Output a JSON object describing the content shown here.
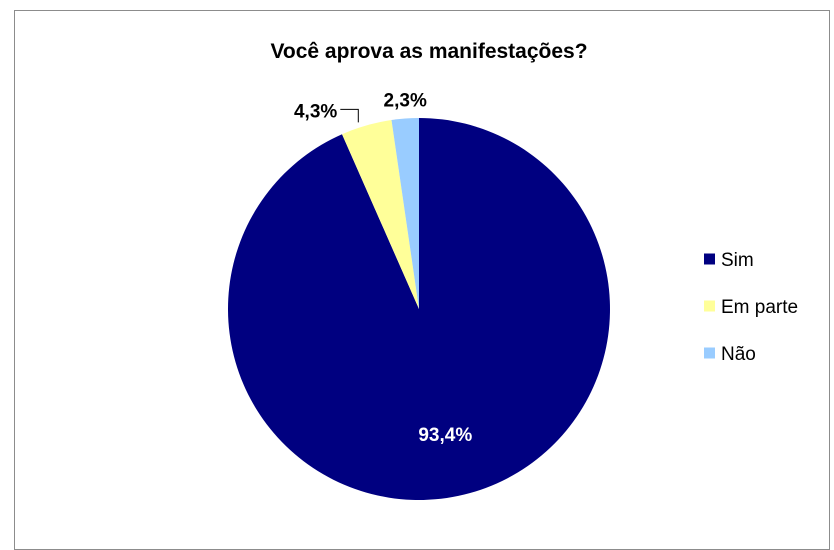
{
  "chart_data": {
    "type": "pie",
    "title": "Você aprova as manifestações?",
    "start_angle_deg": 0,
    "direction": "clockwise",
    "legend_position": "right",
    "slices": [
      {
        "label": "Sim",
        "value": 93.4,
        "display": "93,4%",
        "color": "#000080",
        "label_color": "#ffffff",
        "label_placement": "inside"
      },
      {
        "label": "Em parte",
        "value": 4.3,
        "display": "4,3%",
        "color": "#ffff99",
        "label_color": "#000000",
        "label_placement": "outside-leader"
      },
      {
        "label": "Não",
        "value": 2.3,
        "display": "2,3%",
        "color": "#99ccff",
        "label_color": "#000000",
        "label_placement": "outside"
      }
    ]
  }
}
